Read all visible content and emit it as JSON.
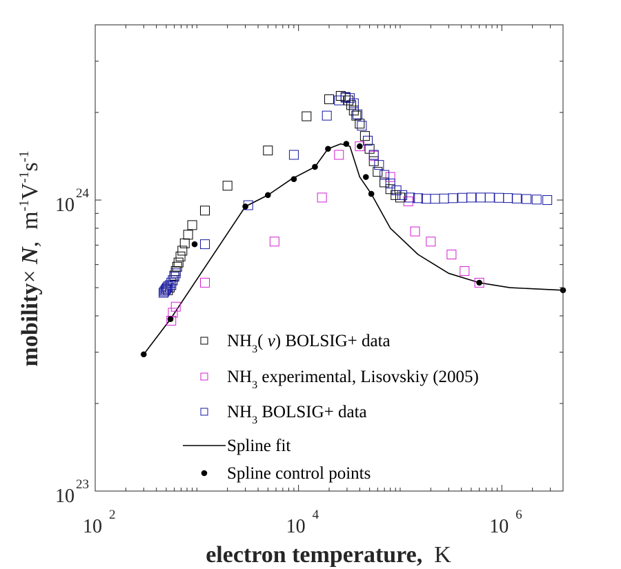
{
  "chart_data": {
    "type": "scatter",
    "xscale": "log",
    "yscale": "log",
    "xlim": [
      100,
      4000000
    ],
    "ylim": [
      1e+23,
      4e+24
    ],
    "grid": false,
    "legend_placement": "bottom-center",
    "xlabel": {
      "bold": "electron temperature,",
      "unit": "K"
    },
    "ylabel": {
      "bold": "mobility",
      "times": "×",
      "italic": "N",
      "unit_parts": [
        {
          "t": "m",
          "s": ""
        },
        {
          "t": "",
          "s": "-1"
        },
        {
          "t": "V",
          "s": ""
        },
        {
          "t": "",
          "s": "-1"
        },
        {
          "t": "s",
          "s": ""
        },
        {
          "t": "",
          "s": "-1"
        }
      ]
    },
    "xticks": [
      {
        "value": 100,
        "base": "10",
        "exp": "2"
      },
      {
        "value": 10000,
        "base": "10",
        "exp": "4"
      },
      {
        "value": 1000000,
        "base": "10",
        "exp": "6"
      }
    ],
    "yticks": [
      {
        "value": 1e+23,
        "base": "10",
        "exp": "23"
      },
      {
        "value": 1e+24,
        "base": "10",
        "exp": "24"
      }
    ],
    "series": [
      {
        "name": "NH3(v) BOLSIG+ data",
        "legend_parts": [
          {
            "t": "NH",
            "s": ""
          },
          {
            "t": "",
            "s": "3"
          },
          {
            "t": "( ",
            "s": ""
          },
          {
            "t": "v",
            "s": "",
            "italic": true
          },
          {
            "t": ") BOLSIG+ data",
            "s": ""
          }
        ],
        "marker": "square",
        "color": "#000000",
        "x": [
          520,
          540,
          560,
          580,
          600,
          620,
          640,
          660,
          690,
          720,
          760,
          820,
          900,
          1200,
          2000,
          5000,
          12000,
          20000,
          26000,
          29000,
          31000,
          33000,
          35000,
          37000,
          40000,
          45000,
          50000,
          55000,
          60000,
          70000,
          80000,
          90000,
          100000
        ],
        "y": [
          4.9e+23,
          5e+23,
          5.1e+23,
          5.3e+23,
          5.5e+23,
          5.7e+23,
          5.9e+23,
          6.1e+23,
          6.4e+23,
          6.7e+23,
          7.1e+23,
          7.6e+23,
          8.2e+23,
          9.2e+23,
          1.12e+24,
          1.48e+24,
          1.94e+24,
          2.22e+24,
          2.28e+24,
          2.25e+24,
          2.2e+24,
          2.12e+24,
          2.03e+24,
          1.95e+24,
          1.83e+24,
          1.66e+24,
          1.5e+24,
          1.36e+24,
          1.25e+24,
          1.15e+24,
          1.09e+24,
          1.04e+24,
          1.02e+24
        ]
      },
      {
        "name": "NH3 experimental, Lisovskiy (2005)",
        "legend_parts": [
          {
            "t": "NH",
            "s": ""
          },
          {
            "t": "",
            "s": "3"
          },
          {
            "t": " experimental, Lisovskiy (2005)",
            "s": ""
          }
        ],
        "marker": "square",
        "color": "#d21fd2",
        "x": [
          560,
          580,
          620,
          1200,
          5800,
          17000,
          25000,
          40000,
          55000,
          80000,
          120000,
          140000,
          200000,
          320000,
          430000,
          600000
        ],
        "y": [
          3.85e+23,
          4.1e+23,
          4.3e+23,
          5.2e+23,
          7.2e+23,
          1.02e+24,
          1.43e+24,
          1.53e+24,
          1.42e+24,
          1.2e+24,
          9.9e+23,
          7.8e+23,
          7.2e+23,
          6.5e+23,
          5.7e+23,
          5.2e+23
        ]
      },
      {
        "name": "NH3 BOLSIG+ data",
        "legend_parts": [
          {
            "t": "NH",
            "s": ""
          },
          {
            "t": "",
            "s": "3"
          },
          {
            "t": " BOLSIG+ data",
            "s": ""
          }
        ],
        "marker": "square",
        "color": "#1414a0",
        "x": [
          470,
          480,
          490,
          500,
          510,
          520,
          540,
          560,
          580,
          600,
          620,
          1200,
          3200,
          9000,
          19000,
          25000,
          29000,
          32000,
          35000,
          38000,
          42000,
          48000,
          55000,
          62000,
          70000,
          80000,
          92000,
          105000,
          125000,
          150000,
          180000,
          220000,
          270000,
          330000,
          410000,
          500000,
          620000,
          760000,
          940000,
          1150000,
          1400000,
          1750000,
          2200000,
          2800000
        ],
        "y": [
          4.8e+23,
          4.85e+23,
          4.9e+23,
          4.95e+23,
          5e+23,
          5.05e+23,
          5.1e+23,
          5.2e+23,
          5.3e+23,
          5.45e+23,
          5.6e+23,
          7.05e+23,
          9.6e+23,
          1.43e+24,
          1.95e+24,
          2.2e+24,
          2.26e+24,
          2.24e+24,
          2.15e+24,
          1.97e+24,
          1.8e+24,
          1.6e+24,
          1.43e+24,
          1.32e+24,
          1.22e+24,
          1.14e+24,
          1.08e+24,
          1.04e+24,
          1.02e+24,
          1.015e+24,
          1.01e+24,
          1.01e+24,
          1.012e+24,
          1.015e+24,
          1.018e+24,
          1.02e+24,
          1.02e+24,
          1.02e+24,
          1.018e+24,
          1.016e+24,
          1.012e+24,
          1.008e+24,
          1.004e+24,
          1e+24
        ]
      },
      {
        "name": "Spline fit",
        "legend_parts": [
          {
            "t": "Spline fit",
            "s": ""
          }
        ],
        "marker": "line",
        "color": "#000000",
        "x": [
          300,
          550,
          3000,
          5000,
          8500,
          14500,
          19500,
          26000,
          32000,
          40000,
          52000,
          80000,
          150000,
          300000,
          600000,
          1200000,
          4000000
        ],
        "y": [
          2.95e+23,
          3.9e+23,
          9.5e+23,
          1.04e+24,
          1.18e+24,
          1.3e+24,
          1.5e+24,
          1.56e+24,
          1.53e+24,
          1.2e+24,
          1.05e+24,
          8e+23,
          6.5e+23,
          5.6e+23,
          5.2e+23,
          5e+23,
          4.9e+23
        ]
      },
      {
        "name": "Spline control points",
        "legend_parts": [
          {
            "t": "Spline control points",
            "s": ""
          }
        ],
        "marker": "dot",
        "color": "#000000",
        "x": [
          300,
          550,
          950,
          3000,
          5000,
          9000,
          14500,
          19500,
          29500,
          40000,
          46000,
          52000,
          600000,
          4000000
        ],
        "y": [
          2.95e+23,
          3.9e+23,
          7.05e+23,
          9.5e+23,
          1.04e+24,
          1.18e+24,
          1.3e+24,
          1.5e+24,
          1.56e+24,
          1.53e+24,
          1.2e+24,
          1.05e+24,
          5.2e+23,
          4.9e+23
        ]
      }
    ]
  }
}
